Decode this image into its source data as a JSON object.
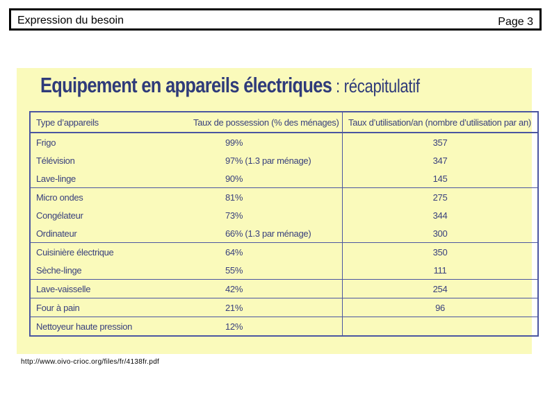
{
  "header": {
    "title": "Expression du besoin",
    "page": "Page 3"
  },
  "panel": {
    "title_main": "Equipement en appareils électriques",
    "title_sub": " : récapitulatif"
  },
  "table": {
    "columns": [
      "Type d’appareils",
      "Taux de possession (% des ménages)",
      "Taux d’utilisation/an (nombre d’utilisation par an)"
    ],
    "rows": [
      [
        "Frigo",
        "99%",
        "357"
      ],
      [
        "Télévision",
        "97% (1.3 par ménage)",
        "347"
      ],
      [
        "Lave-linge",
        "90%",
        "145"
      ],
      [
        "Micro ondes",
        "81%",
        "275"
      ],
      [
        "Congélateur",
        "73%",
        "344"
      ],
      [
        "Ordinateur",
        "66%  (1.3 par ménage)",
        "300"
      ],
      [
        "Cuisinière électrique",
        "64%",
        "350"
      ],
      [
        "Sèche-linge",
        "55%",
        "111"
      ],
      [
        "Lave-vaisselle",
        "42%",
        "254"
      ],
      [
        "Four à pain",
        "21%",
        "96"
      ],
      [
        "Nettoyeur haute pression",
        "12%",
        ""
      ]
    ]
  },
  "source": "http://www.oivo-crioc.org/files/fr/4138fr.pdf"
}
